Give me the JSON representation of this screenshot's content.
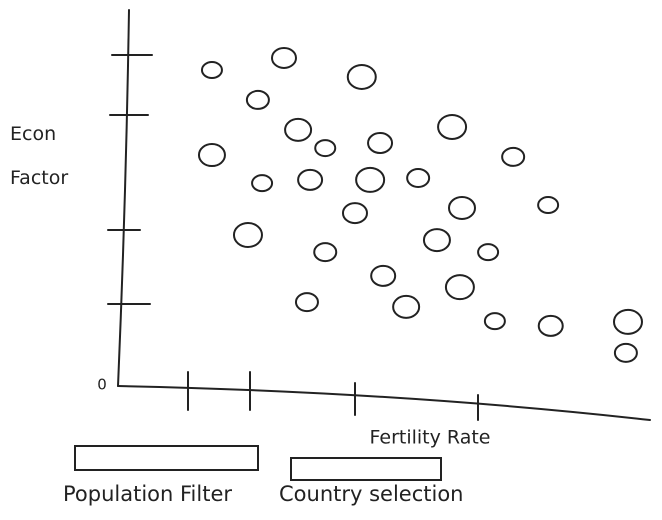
{
  "chart_data": {
    "type": "scatter",
    "x_label": "Fertility Rate",
    "y_label": "Econ Factor",
    "x": [
      18.0,
      31.8,
      46.7,
      26.8,
      34.5,
      39.7,
      50.2,
      64.0,
      75.7,
      18.0,
      27.6,
      36.8,
      48.3,
      57.5,
      65.9,
      82.4,
      45.4,
      24.9,
      39.7,
      61.1,
      70.9,
      50.8,
      65.5,
      36.2,
      55.2,
      72.2,
      82.9,
      97.7,
      97.3
    ],
    "y": [
      86.3,
      89.6,
      84.4,
      78.1,
      69.9,
      64.9,
      66.3,
      70.7,
      62.5,
      63.0,
      55.3,
      56.2,
      56.2,
      56.7,
      48.5,
      49.3,
      47.1,
      41.1,
      36.4,
      39.7,
      36.4,
      29.9,
      26.8,
      22.7,
      21.4,
      17.5,
      16.2,
      17.3,
      8.8
    ],
    "xlim": [
      0,
      100
    ],
    "ylim": [
      0,
      100
    ],
    "xticks": [
      0
    ],
    "color": "#222222"
  },
  "controls": [
    {
      "label": "Population Filter"
    },
    {
      "label": "Country selection"
    }
  ]
}
